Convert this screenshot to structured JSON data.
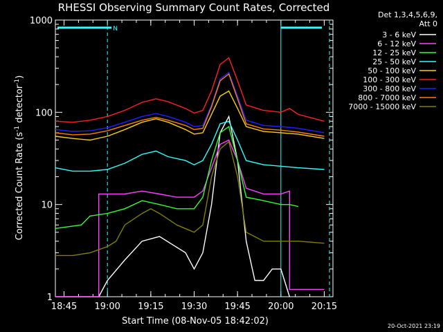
{
  "chart_data": {
    "type": "line",
    "title": "RHESSI Observing Summary Count Rates, Corrected",
    "xlabel": "Start Time (08-Nov-05 18:42:02)",
    "ylabel_main": "Corrected Count Rate (s",
    "ylabel_mid": " detector",
    "ylabel_sup1": "-1",
    "ylabel_sup2": "-1",
    "ylabel_end": ")",
    "y_scale": "log",
    "ylim": [
      1,
      1000
    ],
    "xlim_minutes": [
      18.7,
      20.3
    ],
    "x_ticks": [
      {
        "label": "18:45",
        "t": 18.75
      },
      {
        "label": "19:00",
        "t": 19.0
      },
      {
        "label": "19:15",
        "t": 19.25
      },
      {
        "label": "19:30",
        "t": 19.5
      },
      {
        "label": "19:45",
        "t": 19.75
      },
      {
        "label": "20:00",
        "t": 20.0
      },
      {
        "label": "20:15",
        "t": 20.25
      }
    ],
    "y_ticks": [
      {
        "label": "1",
        "v": 1
      },
      {
        "label": "10",
        "v": 10
      },
      {
        "label": "100",
        "v": 100
      },
      {
        "label": "1000",
        "v": 1000
      }
    ],
    "legend_header": [
      "Det 1,3,4,5,6,9,",
      "Att 0"
    ],
    "night_marker_label": "N",
    "timestamp": "20-Oct-2021 23:19",
    "series": [
      {
        "name": "3 - 6 keV",
        "color": "#ffffff",
        "points": [
          [
            18.7,
            1
          ],
          [
            18.95,
            1
          ],
          [
            19.0,
            1.5
          ],
          [
            19.1,
            2.5
          ],
          [
            19.2,
            4
          ],
          [
            19.3,
            4.5
          ],
          [
            19.45,
            3
          ],
          [
            19.5,
            2
          ],
          [
            19.55,
            3
          ],
          [
            19.6,
            10
          ],
          [
            19.65,
            60
          ],
          [
            19.7,
            90
          ],
          [
            19.75,
            30
          ],
          [
            19.8,
            4
          ],
          [
            19.85,
            1.5
          ],
          [
            19.9,
            1.5
          ],
          [
            19.95,
            2
          ],
          [
            20.0,
            2
          ],
          [
            20.05,
            1
          ]
        ]
      },
      {
        "name": "6 - 12 keV",
        "color": "#ff40ff",
        "points": [
          [
            18.7,
            1
          ],
          [
            18.95,
            1
          ],
          [
            18.95,
            13
          ],
          [
            19.0,
            13
          ],
          [
            19.1,
            13
          ],
          [
            19.2,
            14
          ],
          [
            19.3,
            13
          ],
          [
            19.4,
            12
          ],
          [
            19.5,
            12
          ],
          [
            19.55,
            14
          ],
          [
            19.6,
            25
          ],
          [
            19.65,
            45
          ],
          [
            19.7,
            50
          ],
          [
            19.75,
            30
          ],
          [
            19.8,
            15
          ],
          [
            19.9,
            13
          ],
          [
            20.0,
            13
          ],
          [
            20.05,
            14
          ],
          [
            20.05,
            1.2
          ],
          [
            20.25,
            1.2
          ]
        ]
      },
      {
        "name": "12 - 25 keV",
        "color": "#30ff30",
        "points": [
          [
            18.7,
            5.5
          ],
          [
            18.85,
            6
          ],
          [
            18.9,
            7.5
          ],
          [
            19.0,
            8
          ],
          [
            19.1,
            9
          ],
          [
            19.2,
            11
          ],
          [
            19.3,
            10
          ],
          [
            19.4,
            9
          ],
          [
            19.5,
            9
          ],
          [
            19.55,
            12
          ],
          [
            19.6,
            30
          ],
          [
            19.65,
            60
          ],
          [
            19.7,
            70
          ],
          [
            19.75,
            30
          ],
          [
            19.8,
            12
          ],
          [
            19.9,
            11
          ],
          [
            20.0,
            10
          ],
          [
            20.05,
            10
          ],
          [
            20.1,
            9.5
          ]
        ]
      },
      {
        "name": "25 - 50 keV",
        "color": "#30ffff",
        "points": [
          [
            18.7,
            25
          ],
          [
            18.8,
            23
          ],
          [
            18.9,
            23
          ],
          [
            19.0,
            24
          ],
          [
            19.1,
            28
          ],
          [
            19.2,
            35
          ],
          [
            19.28,
            38
          ],
          [
            19.35,
            33
          ],
          [
            19.45,
            30
          ],
          [
            19.5,
            27
          ],
          [
            19.55,
            30
          ],
          [
            19.6,
            45
          ],
          [
            19.65,
            75
          ],
          [
            19.7,
            80
          ],
          [
            19.75,
            50
          ],
          [
            19.8,
            30
          ],
          [
            19.9,
            27
          ],
          [
            20.0,
            26
          ],
          [
            20.1,
            25
          ],
          [
            20.25,
            24
          ]
        ]
      },
      {
        "name": "50 - 100 keV",
        "color": "#ffd000",
        "points": [
          [
            18.7,
            55
          ],
          [
            18.8,
            52
          ],
          [
            18.9,
            50
          ],
          [
            19.0,
            55
          ],
          [
            19.1,
            65
          ],
          [
            19.2,
            78
          ],
          [
            19.28,
            85
          ],
          [
            19.35,
            78
          ],
          [
            19.45,
            65
          ],
          [
            19.5,
            58
          ],
          [
            19.55,
            60
          ],
          [
            19.6,
            95
          ],
          [
            19.65,
            150
          ],
          [
            19.7,
            170
          ],
          [
            19.75,
            110
          ],
          [
            19.8,
            70
          ],
          [
            19.9,
            62
          ],
          [
            20.0,
            60
          ],
          [
            20.1,
            58
          ],
          [
            20.25,
            52
          ]
        ]
      },
      {
        "name": "100 - 300 keV",
        "color": "#ff2020",
        "points": [
          [
            18.7,
            80
          ],
          [
            18.8,
            78
          ],
          [
            18.9,
            82
          ],
          [
            19.0,
            90
          ],
          [
            19.1,
            105
          ],
          [
            19.2,
            128
          ],
          [
            19.28,
            140
          ],
          [
            19.35,
            130
          ],
          [
            19.45,
            110
          ],
          [
            19.5,
            98
          ],
          [
            19.55,
            105
          ],
          [
            19.6,
            170
          ],
          [
            19.65,
            330
          ],
          [
            19.7,
            390
          ],
          [
            19.75,
            220
          ],
          [
            19.8,
            120
          ],
          [
            19.9,
            105
          ],
          [
            20.0,
            100
          ],
          [
            20.05,
            110
          ],
          [
            20.1,
            95
          ],
          [
            20.25,
            80
          ]
        ]
      },
      {
        "name": "300 - 800 keV",
        "color": "#2020ff",
        "points": [
          [
            18.7,
            65
          ],
          [
            18.8,
            62
          ],
          [
            18.9,
            63
          ],
          [
            19.0,
            68
          ],
          [
            19.1,
            78
          ],
          [
            19.2,
            90
          ],
          [
            19.28,
            97
          ],
          [
            19.35,
            90
          ],
          [
            19.45,
            78
          ],
          [
            19.5,
            70
          ],
          [
            19.55,
            72
          ],
          [
            19.6,
            120
          ],
          [
            19.65,
            230
          ],
          [
            19.7,
            270
          ],
          [
            19.75,
            150
          ],
          [
            19.8,
            82
          ],
          [
            19.9,
            72
          ],
          [
            20.0,
            70
          ],
          [
            20.1,
            67
          ],
          [
            20.25,
            60
          ]
        ]
      },
      {
        "name": "800 - 7000 keV",
        "color": "#ff8000",
        "points": [
          [
            18.7,
            60
          ],
          [
            18.8,
            57
          ],
          [
            18.9,
            58
          ],
          [
            19.0,
            63
          ],
          [
            19.1,
            72
          ],
          [
            19.2,
            82
          ],
          [
            19.28,
            88
          ],
          [
            19.35,
            82
          ],
          [
            19.45,
            72
          ],
          [
            19.5,
            65
          ],
          [
            19.55,
            67
          ],
          [
            19.6,
            115
          ],
          [
            19.65,
            220
          ],
          [
            19.7,
            260
          ],
          [
            19.75,
            140
          ],
          [
            19.8,
            75
          ],
          [
            19.9,
            66
          ],
          [
            20.0,
            64
          ],
          [
            20.1,
            61
          ],
          [
            20.25,
            55
          ]
        ]
      },
      {
        "name": "7000 - 15000 keV",
        "color": "#808000",
        "points": [
          [
            18.7,
            2.8
          ],
          [
            18.8,
            2.8
          ],
          [
            18.9,
            3
          ],
          [
            19.0,
            3.5
          ],
          [
            19.05,
            4
          ],
          [
            19.1,
            6
          ],
          [
            19.2,
            8
          ],
          [
            19.25,
            9
          ],
          [
            19.3,
            8
          ],
          [
            19.4,
            6
          ],
          [
            19.5,
            5
          ],
          [
            19.55,
            6
          ],
          [
            19.6,
            20
          ],
          [
            19.65,
            40
          ],
          [
            19.7,
            48
          ],
          [
            19.75,
            20
          ],
          [
            19.8,
            5
          ],
          [
            19.9,
            4
          ],
          [
            20.0,
            4
          ],
          [
            20.1,
            4
          ],
          [
            20.25,
            3.8
          ]
        ]
      }
    ]
  }
}
